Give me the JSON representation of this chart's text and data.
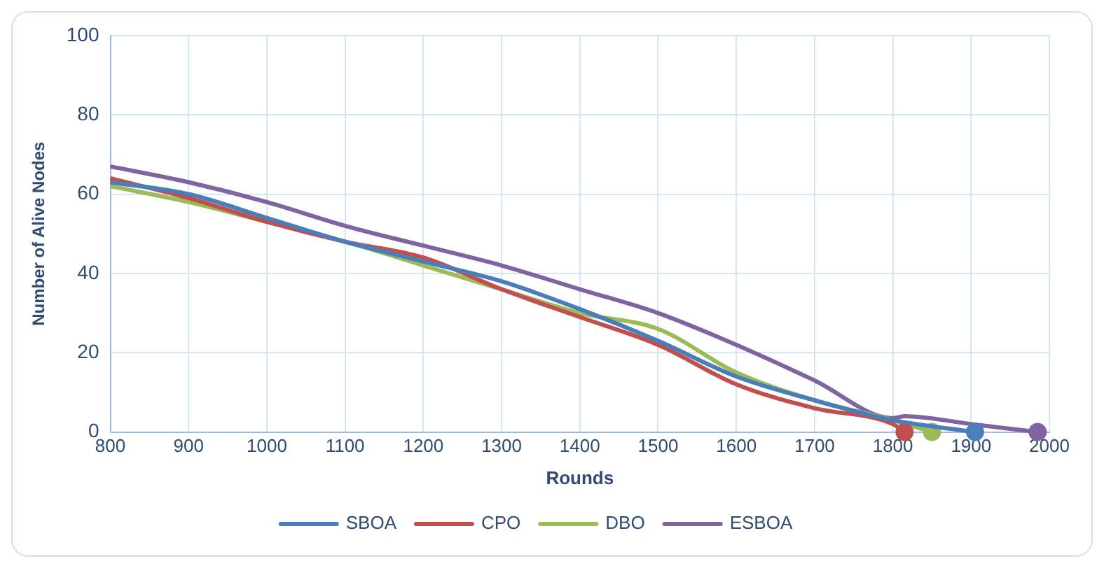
{
  "chart_data": {
    "type": "line",
    "xlabel": "Rounds",
    "ylabel": "Number of Alive Nodes",
    "xlim": [
      800,
      2000
    ],
    "xticks": [
      800,
      900,
      1000,
      1100,
      1200,
      1300,
      1400,
      1500,
      1600,
      1700,
      1800,
      1900,
      2000
    ],
    "ylim": [
      0,
      100
    ],
    "yticks": [
      0,
      20,
      40,
      60,
      80,
      100
    ],
    "grid": true,
    "legend": "bottom",
    "marker": "none",
    "line_style": "solid",
    "series": [
      {
        "name": "SBOA",
        "color": "#4a7ebb",
        "x": [
          800,
          900,
          1000,
          1100,
          1200,
          1300,
          1400,
          1500,
          1600,
          1700,
          1800,
          1905
        ],
        "values": [
          63,
          60,
          54,
          48,
          43,
          38,
          31,
          23,
          14,
          8,
          3,
          0
        ]
      },
      {
        "name": "CPO",
        "color": "#c0504d",
        "x": [
          800,
          900,
          1000,
          1100,
          1200,
          1300,
          1400,
          1500,
          1600,
          1700,
          1800,
          1815
        ],
        "values": [
          64,
          59,
          53,
          48,
          44,
          36,
          29,
          22,
          12,
          6,
          2,
          0
        ]
      },
      {
        "name": "DBO",
        "color": "#9bbb59",
        "x": [
          800,
          900,
          1000,
          1100,
          1200,
          1300,
          1400,
          1500,
          1600,
          1700,
          1800,
          1850
        ],
        "values": [
          62,
          58,
          53,
          48,
          42,
          36,
          30,
          26,
          15,
          8,
          3,
          0
        ]
      },
      {
        "name": "ESBOA",
        "color": "#8064a2",
        "x": [
          800,
          900,
          1000,
          1100,
          1200,
          1300,
          1400,
          1500,
          1600,
          1700,
          1800,
          1815,
          1900,
          1985
        ],
        "values": [
          67,
          63,
          58,
          52,
          47,
          42,
          36,
          30,
          22,
          13,
          3.5,
          4,
          2,
          0
        ]
      }
    ]
  }
}
